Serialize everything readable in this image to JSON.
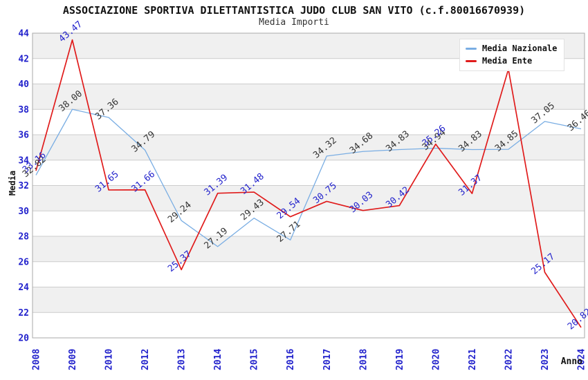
{
  "header": {
    "title": "ASSOCIAZIONE SPORTIVA DILETTANTISTICA JUDO CLUB SAN VITO (c.f.80016670939)",
    "subtitle": "Media Importi"
  },
  "axes": {
    "x_title": "Anno",
    "y_title": "Media",
    "y_ticks": [
      "20",
      "22",
      "24",
      "26",
      "28",
      "30",
      "32",
      "34",
      "36",
      "38",
      "40",
      "42",
      "44"
    ],
    "tick_color": "#2222cc"
  },
  "legend": {
    "items": [
      {
        "label": "Media Nazionale",
        "color": "#79ade3"
      },
      {
        "label": "Media Ente",
        "color": "#e01b1b"
      }
    ]
  },
  "chart_data": {
    "type": "line",
    "title": "ASSOCIAZIONE SPORTIVA DILETTANTISTICA JUDO CLUB SAN VITO (c.f.80016670939)",
    "subtitle": "Media Importi",
    "xlabel": "Anno",
    "ylabel": "Media",
    "ylim": [
      20,
      44
    ],
    "ytick_step": 2,
    "grid": "horizontal gridlines with alternating gray bands",
    "legend_position": "top-right",
    "categories": [
      "2008",
      "2009",
      "2010",
      "2012",
      "2013",
      "2014",
      "2015",
      "2016",
      "2017",
      "2018",
      "2019",
      "2020",
      "2021",
      "2022",
      "2023",
      "2024"
    ],
    "series": [
      {
        "name": "Media Nazionale",
        "color": "#79ade3",
        "label_color": "#333333",
        "values": [
          32.82,
          38.0,
          37.36,
          34.79,
          29.24,
          27.19,
          29.43,
          27.71,
          34.32,
          34.68,
          34.83,
          34.94,
          34.83,
          34.85,
          37.05,
          36.46
        ]
      },
      {
        "name": "Media Ente",
        "color": "#e01b1b",
        "label_color": "#2222cc",
        "values": [
          33.16,
          43.47,
          31.65,
          31.66,
          25.37,
          31.39,
          31.48,
          29.54,
          30.75,
          30.03,
          30.42,
          35.26,
          31.37,
          41.16,
          25.17,
          20.82
        ],
        "hidden_label_indices": [
          13
        ]
      }
    ],
    "style": {
      "band_fill": "#f0f0f0",
      "gridline_color": "#cccccc",
      "plot_border_color": "#aaaaaa",
      "background": "#ffffff"
    }
  }
}
